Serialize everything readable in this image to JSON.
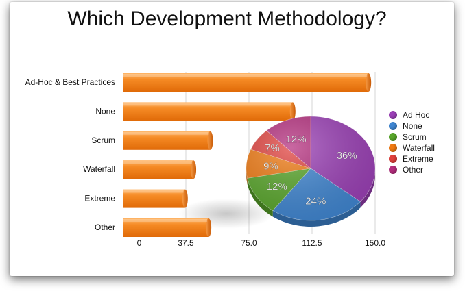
{
  "chart_data": [
    {
      "type": "bar",
      "orientation": "horizontal",
      "title": "Which Development Methodology?",
      "categories": [
        "Ad-Hoc & Best Practices",
        "None",
        "Scrum",
        "Waterfall",
        "Extreme",
        "Other"
      ],
      "values": [
        146,
        101,
        52,
        42,
        37,
        51
      ],
      "x_ticks": [
        "0",
        "37.5",
        "75.0",
        "112.5",
        "150.0"
      ],
      "xlim": [
        0,
        150
      ],
      "grid": true,
      "color": "#F07A12"
    },
    {
      "type": "pie",
      "legend_position": "right",
      "slices": [
        {
          "label": "Ad Hoc",
          "value": 36,
          "text": "36%",
          "color": "#9B3FB6"
        },
        {
          "label": "None",
          "value": 24,
          "text": "24%",
          "color": "#3F86D2"
        },
        {
          "label": "Scrum",
          "value": 12,
          "text": "12%",
          "color": "#58A62A"
        },
        {
          "label": "Waterfall",
          "value": 9,
          "text": "9%",
          "color": "#F07A12"
        },
        {
          "label": "Extreme",
          "value": 7,
          "text": "7%",
          "color": "#E0403C"
        },
        {
          "label": "Other",
          "value": 12,
          "text": "12%",
          "color": "#B42D7D"
        }
      ]
    }
  ]
}
